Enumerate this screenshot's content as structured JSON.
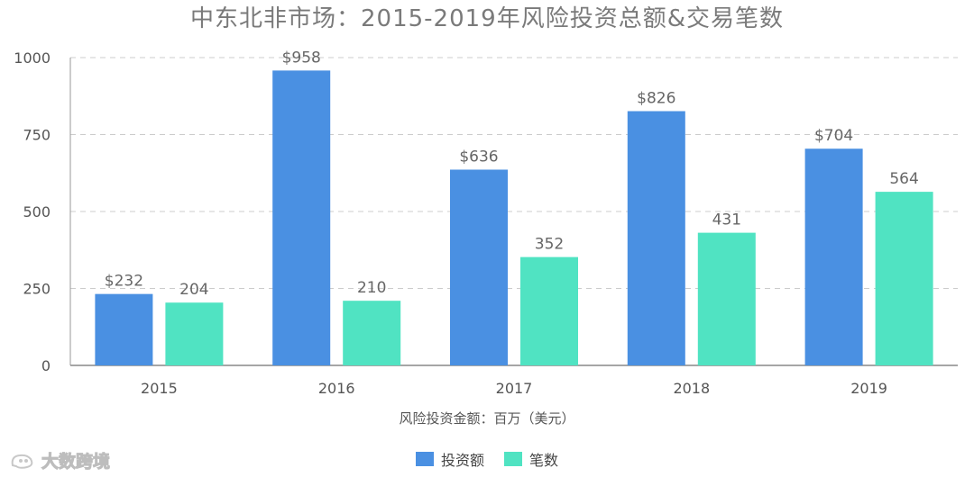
{
  "title": "中东北非市场：2015-2019年风险投资总额&交易笔数",
  "watermark": "大数跨境",
  "colors": {
    "investment": "#4a90e2",
    "deals": "#50e3c2",
    "grid": "#cccccc",
    "axis": "#555555",
    "label": "#666666"
  },
  "chart_data": {
    "type": "bar",
    "title": "中东北非市场：2015-2019年风险投资总额&交易笔数",
    "xlabel": "风险投资金额：百万（美元）",
    "ylabel": "",
    "categories": [
      "2015",
      "2016",
      "2017",
      "2018",
      "2019"
    ],
    "ylim": [
      0,
      1000
    ],
    "yticks": [
      0,
      250,
      500,
      750,
      1000
    ],
    "grid": true,
    "legend_position": "bottom",
    "series": [
      {
        "name": "投资额",
        "values": [
          232,
          958,
          636,
          826,
          704
        ],
        "labels": [
          "$232",
          "$958",
          "$636",
          "$826",
          "$704"
        ],
        "color": "#4a90e2"
      },
      {
        "name": "笔数",
        "values": [
          204,
          210,
          352,
          431,
          564
        ],
        "labels": [
          "204",
          "210",
          "352",
          "431",
          "564"
        ],
        "color": "#50e3c2"
      }
    ]
  }
}
